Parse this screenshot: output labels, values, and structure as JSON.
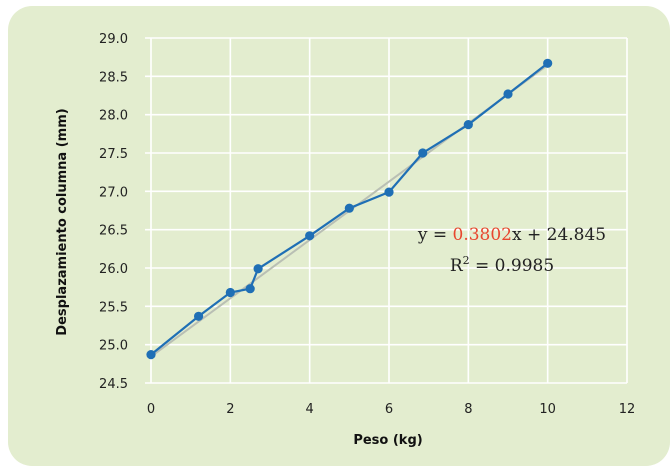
{
  "chart_data": {
    "type": "scatter",
    "xlabel": "Peso (kg)",
    "ylabel": "Desplazamiento columna (mm)",
    "xlim": [
      0,
      12
    ],
    "ylim": [
      24.5,
      29.0
    ],
    "x_ticks": [
      0,
      2,
      4,
      6,
      8,
      10,
      12
    ],
    "x_tick_labels": [
      "0",
      "2",
      "4",
      "6",
      "8",
      "10",
      "12"
    ],
    "y_ticks": [
      24.5,
      25.0,
      25.5,
      26.0,
      26.5,
      27.0,
      27.5,
      28.0,
      28.5,
      29.0
    ],
    "y_tick_labels": [
      "24.5",
      "25.0",
      "25.5",
      "26.0",
      "26.5",
      "27.0",
      "27.5",
      "28.0",
      "28.5",
      "29.0"
    ],
    "grid": true,
    "series": [
      {
        "points": [
          {
            "x": 0,
            "y": 24.87
          },
          {
            "x": 1.2,
            "y": 25.37
          },
          {
            "x": 2.0,
            "y": 25.68
          },
          {
            "x": 2.5,
            "y": 25.73
          },
          {
            "x": 2.7,
            "y": 25.99
          },
          {
            "x": 4.0,
            "y": 26.42
          },
          {
            "x": 5.0,
            "y": 26.78
          },
          {
            "x": 6.0,
            "y": 26.99
          },
          {
            "x": 6.85,
            "y": 27.5
          },
          {
            "x": 8.0,
            "y": 27.87
          },
          {
            "x": 9.0,
            "y": 28.27
          },
          {
            "x": 10.0,
            "y": 28.67
          }
        ],
        "color": "#1f6fb5"
      }
    ],
    "trendline": {
      "slope": 0.3802,
      "intercept": 24.845,
      "x_range": [
        0,
        10
      ],
      "color": "#b9bfb4"
    },
    "annotation": {
      "eq_prefix": "y = ",
      "eq_coef": "0.3802",
      "eq_suffix": "x + 24.845",
      "r2_label": "R",
      "r2_sup": "2",
      "r2_value": " = 0.9985"
    }
  },
  "colors": {
    "background": "#e3edcf",
    "grid": "#ffffff",
    "marker": "#1f6fb5",
    "coef": "#e8472f"
  }
}
